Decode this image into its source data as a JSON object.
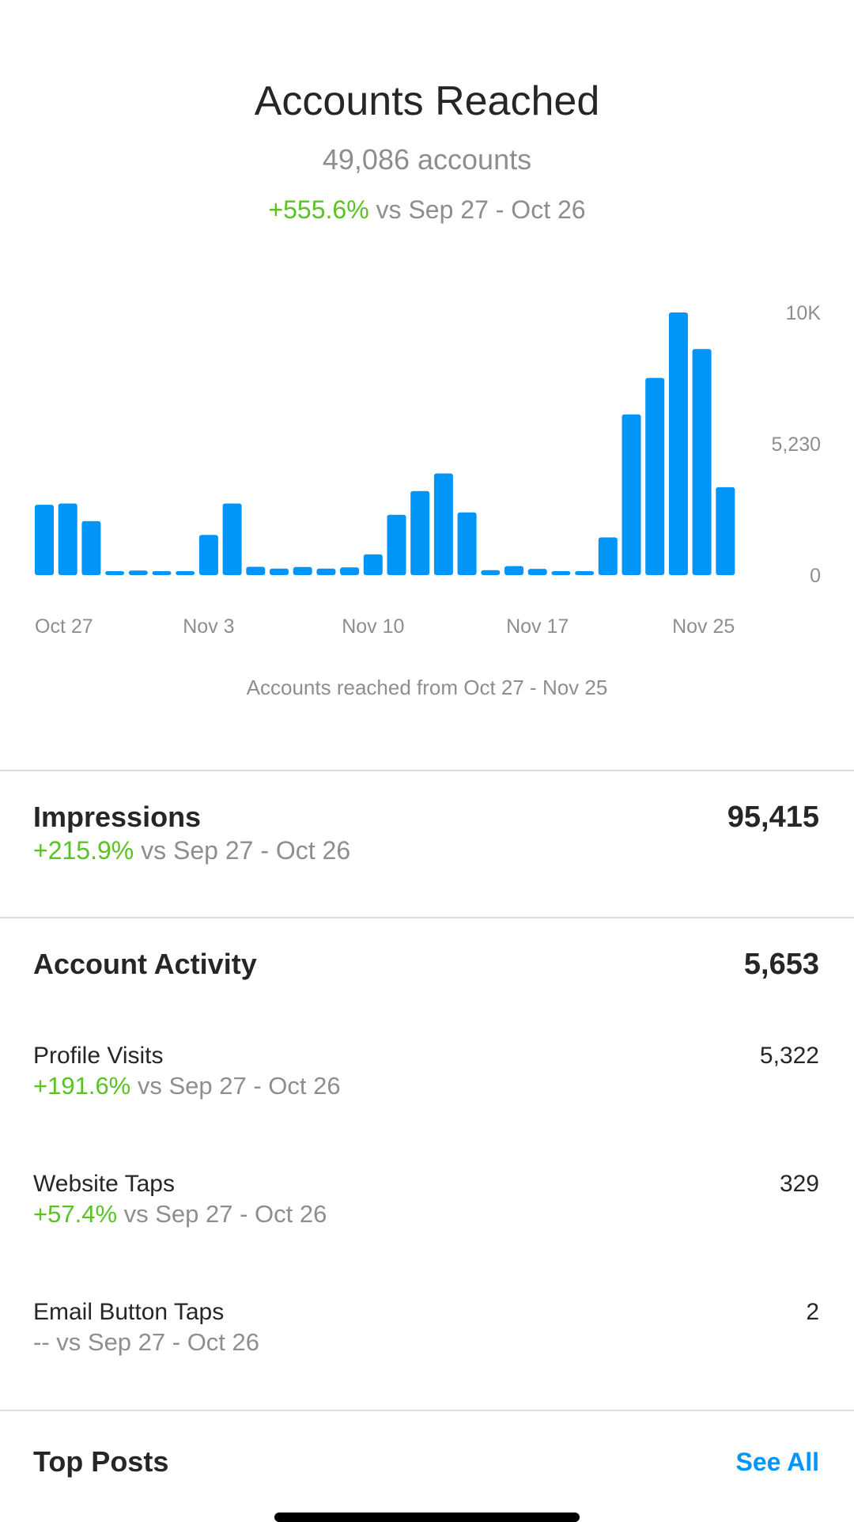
{
  "header": {
    "title": "Accounts Reached",
    "subtitle": "49,086 accounts",
    "change": "+555.6%",
    "comparison": "vs Sep 27 - Oct 26"
  },
  "chart_caption": "Accounts reached from Oct 27 - Nov 25",
  "chart_data": {
    "type": "bar",
    "categories": [
      "Oct 27",
      "Oct 28",
      "Oct 29",
      "Oct 30",
      "Oct 31",
      "Nov 1",
      "Nov 2",
      "Nov 3",
      "Nov 4",
      "Nov 5",
      "Nov 6",
      "Nov 7",
      "Nov 8",
      "Nov 9",
      "Nov 10",
      "Nov 11",
      "Nov 12",
      "Nov 13",
      "Nov 14",
      "Nov 15",
      "Nov 16",
      "Nov 17",
      "Nov 18",
      "Nov 19",
      "Nov 20",
      "Nov 21",
      "Nov 22",
      "Nov 23",
      "Nov 24",
      "Nov 25"
    ],
    "values": [
      2800,
      2850,
      2150,
      150,
      180,
      130,
      140,
      1600,
      2850,
      330,
      260,
      320,
      260,
      310,
      830,
      2400,
      3350,
      4050,
      2500,
      200,
      360,
      250,
      150,
      150,
      1500,
      6400,
      7850,
      10460,
      9000,
      3500
    ],
    "xticks": [
      "Oct 27",
      "Nov 3",
      "Nov 10",
      "Nov 17",
      "Nov 25"
    ],
    "xtick_indices": [
      0,
      7,
      14,
      21,
      29
    ],
    "yticks": [
      0,
      5230,
      10460
    ],
    "ytick_labels": [
      "0",
      "5,230",
      "10K"
    ],
    "ylim": [
      0,
      10460
    ],
    "bar_color": "#0095f6",
    "grid": false
  },
  "impressions": {
    "label": "Impressions",
    "value": "95,415",
    "change": "+215.9%",
    "comparison": "vs Sep 27 - Oct 26"
  },
  "account_activity": {
    "label": "Account Activity",
    "value": "5,653",
    "items": [
      {
        "label": "Profile Visits",
        "value": "5,322",
        "change": "+191.6%",
        "comparison": "vs Sep 27 - Oct 26"
      },
      {
        "label": "Website Taps",
        "value": "329",
        "change": "+57.4%",
        "comparison": "vs Sep 27 - Oct 26"
      },
      {
        "label": "Email Button Taps",
        "value": "2",
        "change": "--",
        "comparison": "vs Sep 27 - Oct 26"
      }
    ]
  },
  "top_posts": {
    "title": "Top Posts",
    "see_all": "See All"
  },
  "colors": {
    "positive": "#58c322",
    "muted": "#8e8e8e",
    "accent": "#0095f6",
    "divider": "#dbdbdb"
  }
}
